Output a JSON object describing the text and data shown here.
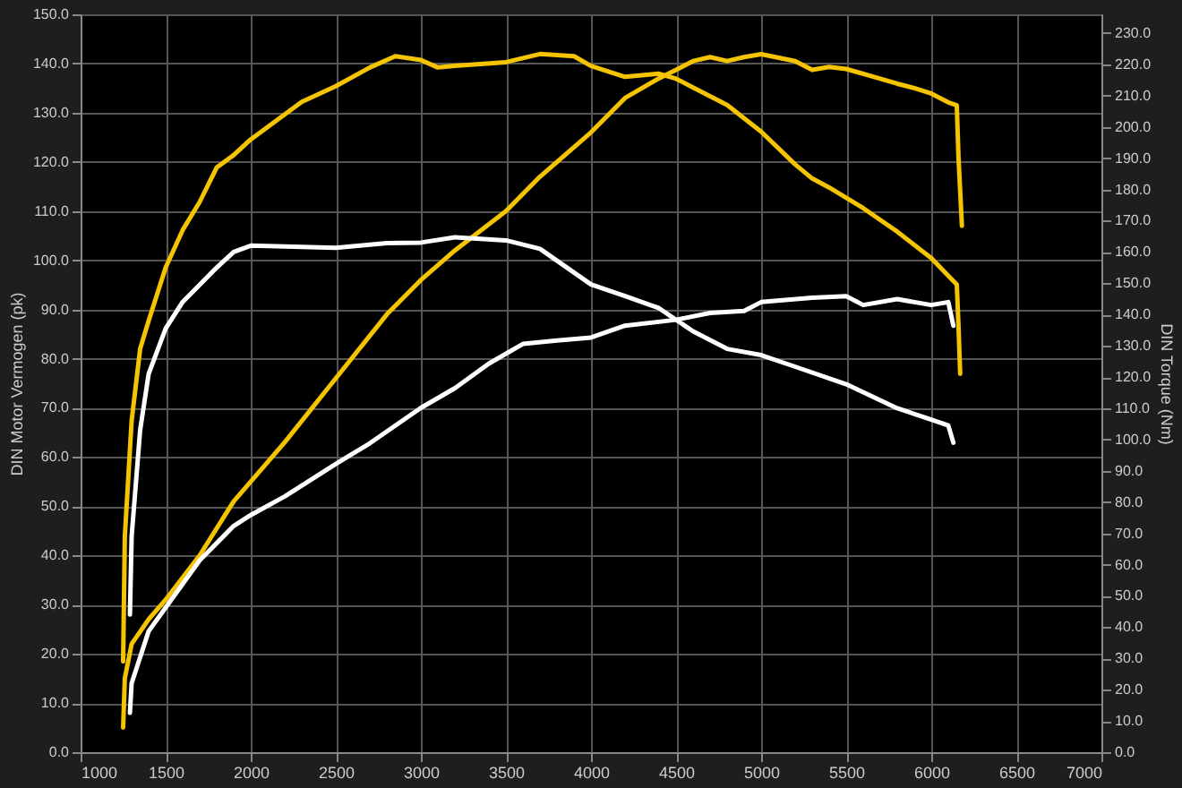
{
  "chart_data": {
    "type": "line",
    "xlabel": null,
    "ylabel": "DIN Motor Vermogen (pk)",
    "y2label": "DIN Torque (Nm)",
    "xlim": [
      1000,
      7000
    ],
    "xticks": [
      1000,
      1500,
      2000,
      2500,
      3000,
      3500,
      4000,
      4500,
      5000,
      5500,
      6000,
      6500,
      7000
    ],
    "ylim": [
      0,
      150
    ],
    "yticks": [
      {
        "value": 0,
        "label": "0.0"
      },
      {
        "value": 10,
        "label": "10.0"
      },
      {
        "value": 20,
        "label": "20.0"
      },
      {
        "value": 30,
        "label": "30.0"
      },
      {
        "value": 40,
        "label": "40.0"
      },
      {
        "value": 50,
        "label": "50.0"
      },
      {
        "value": 60,
        "label": "60.0"
      },
      {
        "value": 70,
        "label": "70.0"
      },
      {
        "value": 80,
        "label": "80.0"
      },
      {
        "value": 90,
        "label": "90.0"
      },
      {
        "value": 100,
        "label": "100.0"
      },
      {
        "value": 110,
        "label": "110.0"
      },
      {
        "value": 120,
        "label": "120.0"
      },
      {
        "value": 130,
        "label": "130.0"
      },
      {
        "value": 140,
        "label": "140.0"
      },
      {
        "value": 150,
        "label": "150.0"
      }
    ],
    "y2lim": [
      0,
      236
    ],
    "y2ticks": [
      {
        "value": 0,
        "label": "0.0"
      },
      {
        "value": 10,
        "label": "10.0"
      },
      {
        "value": 20,
        "label": "20.0"
      },
      {
        "value": 30,
        "label": "30.0"
      },
      {
        "value": 40,
        "label": "40.0"
      },
      {
        "value": 50,
        "label": "50.0"
      },
      {
        "value": 60,
        "label": "60.0"
      },
      {
        "value": 70,
        "label": "70.0"
      },
      {
        "value": 80,
        "label": "80.0"
      },
      {
        "value": 90,
        "label": "90.0"
      },
      {
        "value": 100,
        "label": "100.0"
      },
      {
        "value": 110,
        "label": "110.0"
      },
      {
        "value": 120,
        "label": "120.0"
      },
      {
        "value": 130,
        "label": "130.0"
      },
      {
        "value": 140,
        "label": "140.0"
      },
      {
        "value": 150,
        "label": "150.0"
      },
      {
        "value": 160,
        "label": "160.0"
      },
      {
        "value": 170,
        "label": "170.0"
      },
      {
        "value": 180,
        "label": "180.0"
      },
      {
        "value": 190,
        "label": "190.0"
      },
      {
        "value": 200,
        "label": "200.0"
      },
      {
        "value": 210,
        "label": "210.0"
      },
      {
        "value": 220,
        "label": "220.0"
      },
      {
        "value": 230,
        "label": "230.0"
      }
    ],
    "grid": true,
    "legend": false,
    "marker": "none",
    "line_style": "solid",
    "series": [
      {
        "color": "#f5c400",
        "x": [
          1250,
          1260,
          1300,
          1400,
          1500,
          1700,
          1900,
          2000,
          2200,
          2500,
          2800,
          3000,
          3200,
          3500,
          3700,
          3900,
          4000,
          4200,
          4400,
          4500,
          4600,
          4700,
          4800,
          4900,
          5000,
          5200,
          5300,
          5400,
          5500,
          5700,
          5800,
          5900,
          6000,
          6100,
          6150,
          6160,
          6180
        ],
        "values": [
          5,
          15,
          22,
          27,
          31,
          40,
          51,
          55,
          63,
          76,
          89,
          96,
          102,
          110,
          117,
          123,
          126,
          133,
          137,
          138.7,
          140.5,
          141.3,
          140.5,
          141.3,
          141.9,
          140.5,
          138.7,
          139.3,
          138.9,
          136.9,
          135.9,
          135,
          133.9,
          132.1,
          131.5,
          121,
          107
        ]
      },
      {
        "color": "#ffffff",
        "x": [
          1290,
          1300,
          1400,
          1500,
          1700,
          1900,
          2000,
          2200,
          2500,
          2700,
          3000,
          3200,
          3400,
          3600,
          3800,
          4000,
          4200,
          4500,
          4700,
          4900,
          5000,
          5300,
          5500,
          5600,
          5800,
          6000,
          6100,
          6130
        ],
        "values": [
          8,
          14,
          24.6,
          29.4,
          39,
          46,
          48.2,
          52,
          58.6,
          62.8,
          70,
          74,
          79,
          83,
          83.7,
          84.3,
          86.7,
          87.9,
          89.3,
          89.7,
          91.5,
          92.4,
          92.7,
          90.9,
          92.1,
          90.9,
          91.5,
          86.7
        ]
      },
      {
        "color": "#f5c400",
        "axis": "y2",
        "x": [
          1250,
          1260,
          1300,
          1350,
          1400,
          1500,
          1600,
          1700,
          1800,
          1900,
          2000,
          2200,
          2300,
          2500,
          2700,
          2850,
          3000,
          3100,
          3200,
          3500,
          3700,
          3900,
          4000,
          4200,
          4400,
          4500,
          4600,
          4800,
          5000,
          5200,
          5300,
          5400,
          5600,
          5800,
          6000,
          6100,
          6150,
          6160,
          6170
        ],
        "values": [
          29,
          69,
          106,
          129,
          138,
          155,
          167,
          176,
          187,
          191,
          196,
          204,
          208,
          213,
          219,
          222.6,
          221.4,
          219,
          219.5,
          220.7,
          223.3,
          222.6,
          219.5,
          216,
          217,
          215.4,
          212.6,
          207,
          198.5,
          188,
          183.5,
          180.6,
          174,
          166.5,
          158,
          152.4,
          149.6,
          136.5,
          121
        ]
      },
      {
        "color": "#ffffff",
        "axis": "y2",
        "x": [
          1290,
          1300,
          1350,
          1400,
          1500,
          1600,
          1800,
          1900,
          2000,
          2500,
          2800,
          3000,
          3200,
          3500,
          3700,
          3900,
          4000,
          4200,
          4400,
          4600,
          4800,
          5000,
          5200,
          5500,
          5800,
          6000,
          6100,
          6130
        ],
        "values": [
          44,
          69,
          103,
          121,
          135.5,
          144,
          155,
          160,
          162,
          161.3,
          162.8,
          163,
          164.7,
          163.7,
          161,
          153.4,
          149.6,
          145.9,
          142,
          134.6,
          129,
          127,
          123.3,
          117.7,
          110,
          106.4,
          104.5,
          99
        ]
      }
    ]
  }
}
